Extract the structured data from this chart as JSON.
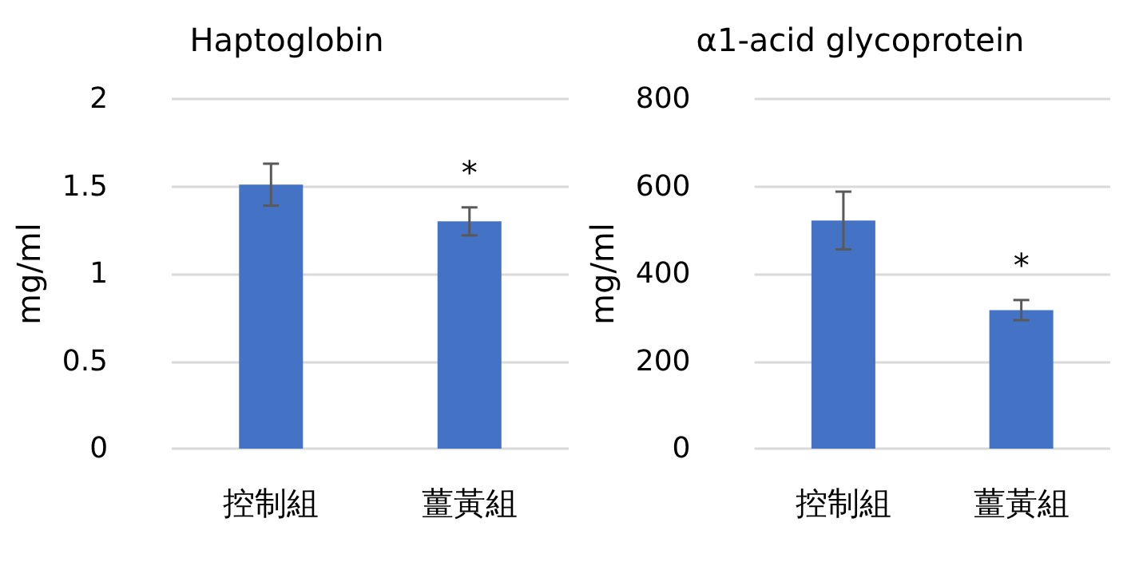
{
  "chart_data": [
    {
      "type": "bar",
      "title": "Haptoglobin",
      "ylabel": "mg/ml",
      "categories": [
        "控制組",
        "薑黃組"
      ],
      "values": [
        1.51,
        1.3
      ],
      "errors": [
        0.12,
        0.08
      ],
      "color": "#4472c4",
      "ylim": [
        0,
        2
      ],
      "yticks": [
        0,
        0.5,
        1,
        1.5,
        2
      ],
      "grid": "y",
      "annotations": [
        "*"
      ]
    },
    {
      "type": "bar",
      "title": "α1-acid glycoprotein",
      "ylabel": "mg/ml",
      "categories": [
        "控制組",
        "薑黃組"
      ],
      "values": [
        522,
        317
      ],
      "errors": [
        66,
        23
      ],
      "color": "#4472c4",
      "ylim": [
        0,
        800
      ],
      "yticks": [
        0,
        200,
        400,
        600,
        800
      ],
      "grid": "y",
      "annotations": [
        "*"
      ]
    }
  ]
}
